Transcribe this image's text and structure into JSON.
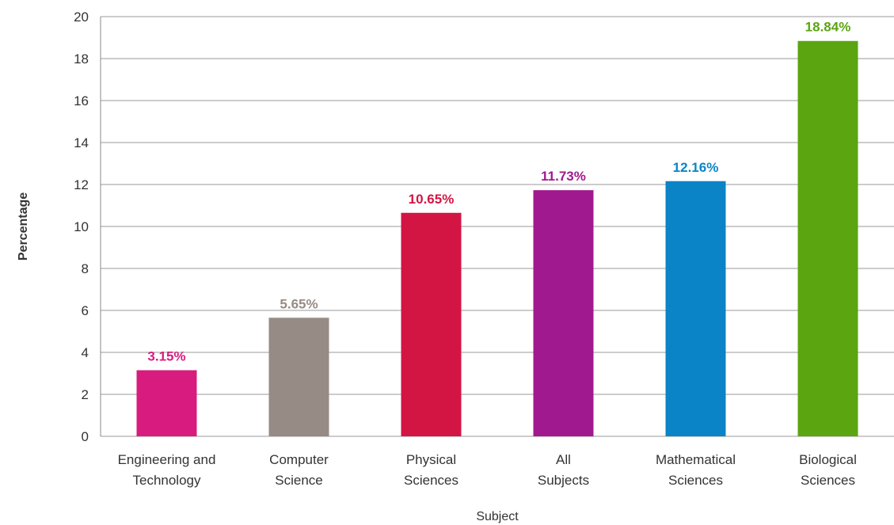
{
  "chart_data": {
    "type": "bar",
    "title": "",
    "xlabel": "Subject",
    "ylabel": "Percentage",
    "ylim": [
      0,
      20
    ],
    "yticks": [
      "0",
      "2",
      "4",
      "6",
      "8",
      "10",
      "12",
      "14",
      "16",
      "18",
      "20"
    ],
    "grid": true,
    "categories": [
      [
        "Engineering and",
        "Technology"
      ],
      [
        "Computer",
        "Science"
      ],
      [
        "Physical",
        "Sciences"
      ],
      [
        "All",
        "Subjects"
      ],
      [
        "Mathematical",
        "Sciences"
      ],
      [
        "Biological",
        "Sciences"
      ]
    ],
    "values": [
      3.15,
      5.65,
      10.65,
      11.73,
      12.16,
      18.84
    ],
    "value_labels": [
      "3.15%",
      "5.65%",
      "10.65%",
      "11.73%",
      "12.16%",
      "18.84%"
    ],
    "colors": [
      "#d81b7f",
      "#968b85",
      "#d31544",
      "#a1198e",
      "#0a84c6",
      "#5ba511"
    ]
  }
}
